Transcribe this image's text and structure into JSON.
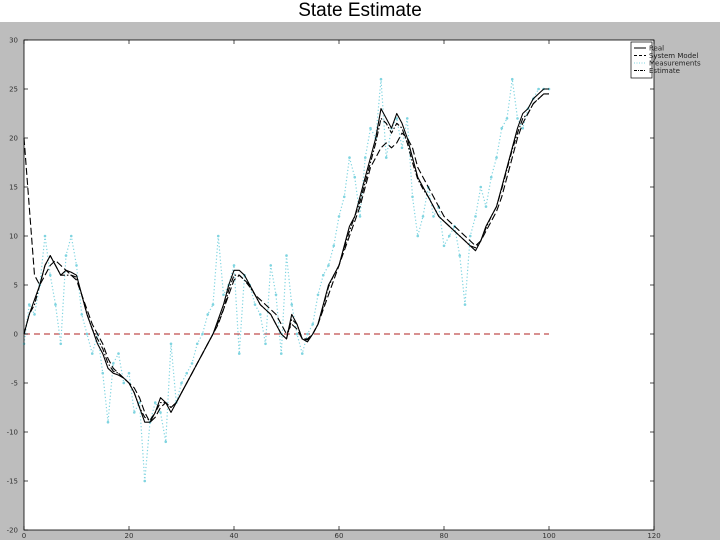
{
  "slide": {
    "title": "State Estimate"
  },
  "chart_data": {
    "type": "line",
    "title": "State Estimate",
    "xlabel": "",
    "ylabel": "",
    "xlim": [
      0,
      120
    ],
    "ylim": [
      -20,
      30
    ],
    "xticks": [
      0,
      20,
      40,
      60,
      80,
      100,
      120
    ],
    "yticks": [
      -20,
      -15,
      -10,
      -5,
      0,
      5,
      10,
      15,
      20,
      25,
      30
    ],
    "grid": false,
    "legend": {
      "position": "top-right",
      "entries": [
        "Real",
        "System Model",
        "Measurements",
        "Estimate"
      ]
    },
    "colors": {
      "real": "#000000",
      "model": "#000000",
      "measurements": "#7fd4e0",
      "estimate": "#000000",
      "zero": "#b22222"
    },
    "x": [
      0,
      1,
      2,
      3,
      4,
      5,
      6,
      7,
      8,
      9,
      10,
      11,
      12,
      13,
      14,
      15,
      16,
      17,
      18,
      19,
      20,
      21,
      22,
      23,
      24,
      25,
      26,
      27,
      28,
      29,
      30,
      31,
      32,
      33,
      34,
      35,
      36,
      37,
      38,
      39,
      40,
      41,
      42,
      43,
      44,
      45,
      46,
      47,
      48,
      49,
      50,
      51,
      52,
      53,
      54,
      55,
      56,
      57,
      58,
      59,
      60,
      61,
      62,
      63,
      64,
      65,
      66,
      67,
      68,
      69,
      70,
      71,
      72,
      73,
      74,
      75,
      76,
      77,
      78,
      79,
      80,
      81,
      82,
      83,
      84,
      85,
      86,
      87,
      88,
      89,
      90,
      91,
      92,
      93,
      94,
      95,
      96,
      97,
      98,
      99,
      100
    ],
    "series": [
      {
        "name": "Real",
        "style": "solid",
        "values": [
          0,
          2,
          3.5,
          5,
          7,
          8,
          7,
          6,
          6.5,
          6.3,
          6,
          4,
          2,
          0.5,
          -1,
          -2,
          -3.5,
          -4,
          -4.2,
          -4.5,
          -5,
          -6,
          -7.5,
          -9,
          -9,
          -8,
          -6.5,
          -7,
          -8,
          -7,
          -6,
          -5,
          -4,
          -3,
          -2,
          -1,
          0,
          1.5,
          3,
          5,
          6.5,
          6.5,
          6,
          5,
          4,
          3,
          2.5,
          2,
          1,
          0,
          -0.5,
          2,
          1,
          -0.5,
          -0.8,
          0,
          1,
          3,
          5,
          6,
          7,
          9,
          11,
          12,
          14,
          16,
          18,
          20,
          23,
          22,
          21,
          22.5,
          21.5,
          20,
          18,
          16,
          15,
          14,
          13,
          12,
          11.5,
          11,
          10.5,
          10,
          9.5,
          9,
          8.5,
          9.5,
          11,
          12,
          13,
          15,
          17,
          19,
          21,
          22.5,
          23,
          24,
          24.5,
          25,
          25
        ]
      },
      {
        "name": "System Model",
        "style": "dashed",
        "values": [
          20,
          13,
          6,
          5,
          6,
          7,
          7.5,
          7,
          6.5,
          6,
          5.5,
          4,
          2.5,
          1,
          0,
          -1,
          -2.5,
          -3.5,
          -4,
          -4.5,
          -5,
          -5.5,
          -6.5,
          -8,
          -9,
          -8.5,
          -7.5,
          -7,
          -7.5,
          -7,
          -6,
          -5,
          -4,
          -3,
          -2,
          -1,
          0,
          1,
          2.5,
          4,
          5.5,
          6,
          5.5,
          5,
          4,
          3.5,
          3,
          2.5,
          2,
          1,
          0,
          1,
          0.5,
          -0.5,
          -0.5,
          0,
          1,
          2.5,
          4,
          5.5,
          7,
          8.5,
          10,
          11.5,
          13,
          15,
          17,
          18,
          19,
          19.5,
          19,
          19.5,
          20.5,
          20,
          19,
          17,
          16,
          15,
          14,
          13,
          12,
          11.5,
          11,
          10.5,
          10,
          9.5,
          9,
          9.5,
          10.5,
          11.5,
          12.5,
          14,
          16,
          18,
          20,
          21.5,
          22.5,
          23.5,
          24,
          24.5,
          24.5
        ]
      },
      {
        "name": "Measurements",
        "style": "dotted",
        "values": [
          -1,
          3,
          2,
          5,
          10,
          6,
          3,
          -1,
          8,
          10,
          7,
          2,
          0,
          -2,
          0,
          -4,
          -9,
          -3,
          -2,
          -5,
          -4,
          -8,
          -7,
          -15,
          -9,
          -7,
          -8,
          -11,
          -1,
          -7,
          -5,
          -4,
          -3,
          -1,
          0,
          2,
          3,
          10,
          4,
          5,
          7,
          -2,
          6,
          5,
          3,
          2,
          -1,
          7,
          4,
          -2,
          8,
          3,
          0,
          -2,
          0,
          1,
          4,
          6,
          7,
          9,
          12,
          14,
          18,
          16,
          12,
          18,
          21,
          20,
          26,
          18,
          21,
          22,
          19,
          22,
          14,
          10,
          12,
          15,
          12,
          13,
          9,
          10,
          11,
          8,
          3,
          10,
          12,
          15,
          13,
          16,
          18,
          21,
          22,
          26,
          22,
          21,
          23,
          24,
          25,
          25,
          25
        ]
      },
      {
        "name": "Estimate",
        "style": "dashdot",
        "values": [
          0,
          2,
          3,
          5,
          7,
          8,
          7,
          6,
          6,
          6,
          5.8,
          4,
          2,
          0.5,
          -0.5,
          -1.5,
          -3,
          -3.8,
          -4,
          -4.5,
          -5,
          -6,
          -7.5,
          -8.5,
          -8.8,
          -8,
          -7,
          -7,
          -7.5,
          -7,
          -6,
          -5,
          -4,
          -3,
          -2,
          -1,
          0,
          1.2,
          2.5,
          4.5,
          6,
          6,
          5.5,
          4.8,
          4,
          3,
          2.5,
          2,
          1,
          0,
          -0.5,
          1.5,
          1,
          -0.5,
          -0.6,
          0,
          1,
          2.8,
          4.8,
          6,
          7,
          8.8,
          10.5,
          12,
          13.5,
          15.5,
          17.5,
          19.5,
          22,
          21.5,
          20.5,
          21.5,
          21,
          19.5,
          17.5,
          15.8,
          14.8,
          14,
          13,
          12,
          11.5,
          11,
          10.5,
          10,
          9.5,
          9,
          8.8,
          9.5,
          10.8,
          12,
          13,
          14.8,
          16.8,
          18.8,
          20.5,
          22,
          22.5,
          23.5,
          24,
          24.5,
          24.5
        ]
      }
    ],
    "reference_line": {
      "y": 0,
      "x_range": [
        0,
        100
      ],
      "style": "dashed"
    }
  }
}
